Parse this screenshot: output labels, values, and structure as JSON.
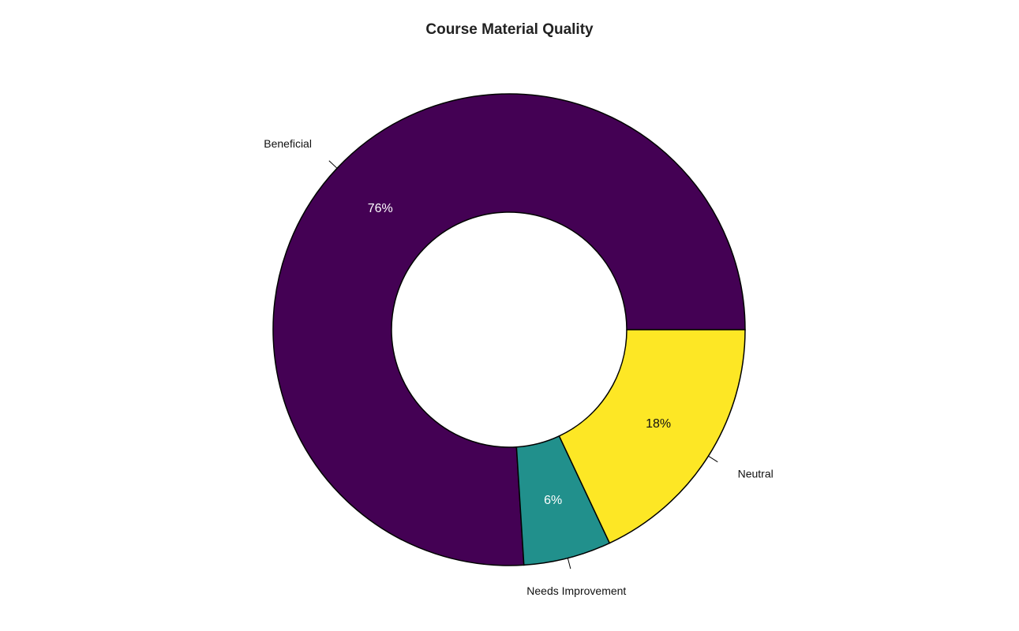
{
  "chart_data": {
    "type": "pie",
    "title": "Course Material Quality",
    "categories": [
      "Beneficial",
      "Needs Improvement",
      "Neutral"
    ],
    "values": [
      76,
      6,
      18
    ],
    "value_labels": [
      "76%",
      "6%",
      "18%"
    ],
    "colors": [
      "#440154",
      "#21908C",
      "#FDE725"
    ],
    "label_colors": [
      "#ffffff",
      "#ffffff",
      "#111111"
    ],
    "legend": "none",
    "donut": true
  }
}
